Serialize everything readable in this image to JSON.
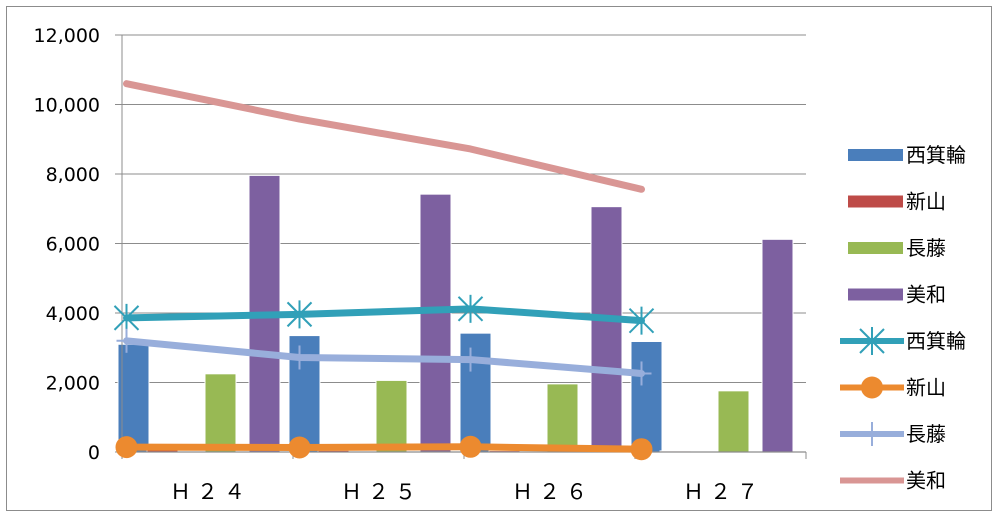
{
  "chart_data": {
    "type": "bar",
    "categories": [
      "Ｈ２４",
      "Ｈ２５",
      "Ｈ２６",
      "Ｈ２７"
    ],
    "ylim": [
      0,
      12000
    ],
    "yticks": [
      0,
      2000,
      4000,
      6000,
      8000,
      10000,
      12000
    ],
    "ytick_labels": [
      "0",
      "2,000",
      "4,000",
      "6,000",
      "8,000",
      "10,000",
      "12,000"
    ],
    "grid": true,
    "legend_position": "right",
    "bar_series": [
      {
        "name": "西箕輪",
        "color": "#4a7ebb",
        "values": [
          3100,
          3350,
          3420,
          3180
        ]
      },
      {
        "name": "新山",
        "color": "#be4b48",
        "values": [
          60,
          50,
          40,
          30
        ]
      },
      {
        "name": "長藤",
        "color": "#98b954",
        "values": [
          2250,
          2060,
          1960,
          1760
        ]
      },
      {
        "name": "美和",
        "color": "#7d60a0",
        "values": [
          7960,
          7420,
          7060,
          6120
        ]
      }
    ],
    "line_series": [
      {
        "name": "西箕輪",
        "color": "#31a0b8",
        "marker": "star",
        "values": [
          3860,
          3960,
          4120,
          3780
        ]
      },
      {
        "name": "新山",
        "color": "#ec8a2f",
        "marker": "circle",
        "values": [
          140,
          130,
          150,
          80
        ]
      },
      {
        "name": "長藤",
        "color": "#98aedb",
        "marker": "plus",
        "values": [
          3200,
          2720,
          2660,
          2260
        ]
      },
      {
        "name": "美和",
        "color": "#d99694",
        "marker": "none",
        "values": [
          10600,
          9580,
          8720,
          7560
        ]
      }
    ]
  }
}
